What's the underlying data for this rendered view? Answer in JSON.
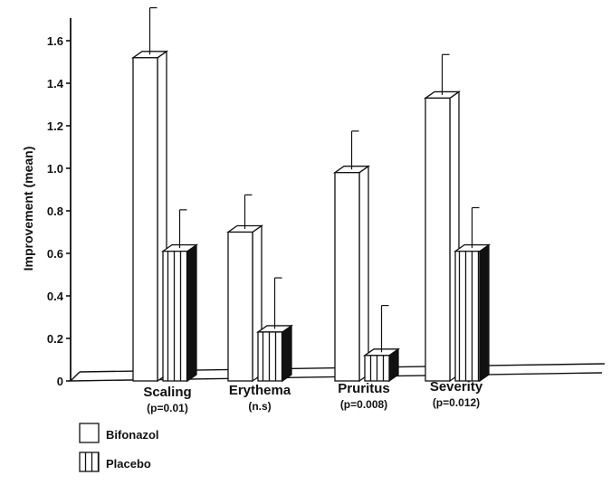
{
  "chart_data": {
    "type": "bar",
    "title": "",
    "ylabel": "Improvement (mean)",
    "xlabel": "",
    "ylim": [
      0,
      1.7
    ],
    "yticks": [
      "0",
      "0.2",
      "0.4",
      "0.6",
      "0.8",
      "1.0",
      "1.2",
      "1.4",
      "1.6"
    ],
    "categories": [
      "Scaling",
      "Erythema",
      "Pruritus",
      "Severity"
    ],
    "pvalues": [
      "(p=0.01)",
      "(n.s)",
      "(p=0.008)",
      "(p=0.012)"
    ],
    "series": [
      {
        "name": "Bifonazol",
        "values": [
          1.52,
          0.7,
          0.98,
          1.33
        ],
        "error": [
          0.22,
          0.16,
          0.18,
          0.19
        ],
        "pattern": "plain"
      },
      {
        "name": "Placebo",
        "values": [
          0.61,
          0.23,
          0.12,
          0.61
        ],
        "error": [
          0.18,
          0.24,
          0.22,
          0.19
        ],
        "pattern": "vertical-stripes"
      }
    ],
    "legend_position": "bottom-left",
    "grid": false
  }
}
